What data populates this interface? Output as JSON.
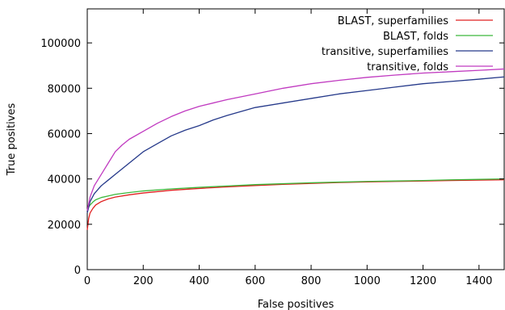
{
  "chart_data": {
    "type": "line",
    "title": "",
    "xlabel": "False positives",
    "ylabel": "True positives",
    "xlim": [
      0,
      1490
    ],
    "ylim": [
      0,
      115000
    ],
    "x_ticks": [
      0,
      200,
      400,
      600,
      800,
      1000,
      1200,
      1400
    ],
    "y_ticks": [
      0,
      20000,
      40000,
      60000,
      80000,
      100000
    ],
    "grid": false,
    "legend_position": "top-right",
    "series": [
      {
        "name": "BLAST, superfamilies",
        "color": "#e02020",
        "points": [
          [
            0,
            17500
          ],
          [
            5,
            22500
          ],
          [
            10,
            25000
          ],
          [
            20,
            27000
          ],
          [
            30,
            28500
          ],
          [
            50,
            30000
          ],
          [
            75,
            31200
          ],
          [
            100,
            32000
          ],
          [
            150,
            33000
          ],
          [
            200,
            33800
          ],
          [
            300,
            35000
          ],
          [
            400,
            35800
          ],
          [
            500,
            36500
          ],
          [
            600,
            37100
          ],
          [
            700,
            37600
          ],
          [
            800,
            38000
          ],
          [
            900,
            38400
          ],
          [
            1000,
            38700
          ],
          [
            1100,
            38900
          ],
          [
            1200,
            39100
          ],
          [
            1300,
            39300
          ],
          [
            1400,
            39500
          ],
          [
            1490,
            39600
          ]
        ]
      },
      {
        "name": "BLAST, folds",
        "color": "#3cb83c",
        "points": [
          [
            0,
            26000
          ],
          [
            5,
            27500
          ],
          [
            10,
            28500
          ],
          [
            20,
            29800
          ],
          [
            30,
            30800
          ],
          [
            50,
            31800
          ],
          [
            75,
            32500
          ],
          [
            100,
            33200
          ],
          [
            150,
            34000
          ],
          [
            200,
            34700
          ],
          [
            300,
            35600
          ],
          [
            400,
            36300
          ],
          [
            500,
            36900
          ],
          [
            600,
            37500
          ],
          [
            700,
            37900
          ],
          [
            800,
            38300
          ],
          [
            900,
            38600
          ],
          [
            1000,
            38900
          ],
          [
            1100,
            39100
          ],
          [
            1200,
            39300
          ],
          [
            1300,
            39600
          ],
          [
            1400,
            39800
          ],
          [
            1490,
            40000
          ]
        ]
      },
      {
        "name": "transitive, superfamilies",
        "color": "#25398a",
        "points": [
          [
            0,
            25000
          ],
          [
            10,
            30000
          ],
          [
            25,
            33500
          ],
          [
            50,
            37000
          ],
          [
            75,
            39500
          ],
          [
            100,
            42000
          ],
          [
            125,
            44500
          ],
          [
            150,
            47000
          ],
          [
            200,
            52000
          ],
          [
            250,
            55500
          ],
          [
            300,
            59000
          ],
          [
            350,
            61500
          ],
          [
            400,
            63500
          ],
          [
            450,
            66000
          ],
          [
            500,
            68000
          ],
          [
            600,
            71500
          ],
          [
            700,
            73500
          ],
          [
            800,
            75500
          ],
          [
            900,
            77500
          ],
          [
            1000,
            79000
          ],
          [
            1100,
            80500
          ],
          [
            1200,
            82000
          ],
          [
            1300,
            83000
          ],
          [
            1400,
            84000
          ],
          [
            1490,
            85000
          ]
        ]
      },
      {
        "name": "transitive, folds",
        "color": "#c03ac0",
        "points": [
          [
            0,
            26000
          ],
          [
            10,
            32000
          ],
          [
            25,
            37000
          ],
          [
            50,
            42000
          ],
          [
            75,
            47000
          ],
          [
            100,
            52000
          ],
          [
            125,
            55000
          ],
          [
            150,
            57500
          ],
          [
            200,
            61000
          ],
          [
            250,
            64500
          ],
          [
            300,
            67500
          ],
          [
            350,
            70000
          ],
          [
            400,
            72000
          ],
          [
            450,
            73500
          ],
          [
            500,
            75000
          ],
          [
            600,
            77500
          ],
          [
            700,
            80000
          ],
          [
            800,
            82000
          ],
          [
            900,
            83500
          ],
          [
            1000,
            84800
          ],
          [
            1100,
            85800
          ],
          [
            1200,
            86700
          ],
          [
            1300,
            87300
          ],
          [
            1400,
            87900
          ],
          [
            1490,
            88500
          ]
        ]
      }
    ]
  }
}
